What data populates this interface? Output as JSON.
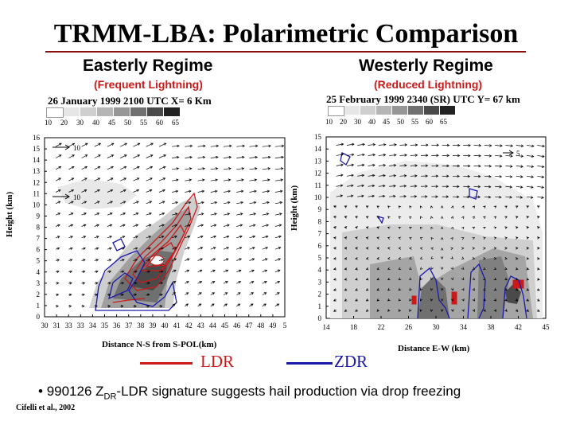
{
  "slide": {
    "title": "TRMM-LBA: Polarimetric Comparison",
    "bullet_marker": "•",
    "bullet_pre": "990126 Z",
    "bullet_sub": "DR",
    "bullet_post": "-LDR signature suggests hail production via drop freezing",
    "citation": "Cifelli et al., 2002"
  },
  "left_panel": {
    "regime": "Easterly Regime",
    "subtitle": "(Frequent Lightning)",
    "plot_title": "26 January 1999 2100 UTC X= 6 Km",
    "scale_labels": [
      "10",
      "20",
      "30",
      "40",
      "45",
      "50",
      "55",
      "60",
      "65"
    ],
    "ylabel": "Height (km)",
    "xlabel": "Distance N-S from S-POL(km)",
    "x_ticks": [
      "30",
      "31",
      "33",
      "33",
      "34",
      "35",
      "36",
      "37",
      "38",
      "39",
      "40",
      "41",
      "42",
      "43",
      "44",
      "45",
      "46",
      "47",
      "48",
      "49",
      "5"
    ],
    "y_ticks": [
      "0",
      "1",
      "2",
      "3",
      "4",
      "5",
      "6",
      "7",
      "8",
      "9",
      "10",
      "11",
      "12",
      "13",
      "14",
      "15",
      "16"
    ],
    "vector_scale": "10",
    "vector_scale_2": "10"
  },
  "right_panel": {
    "regime": "Westerly Regime",
    "subtitle": "(Reduced Lightning)",
    "plot_title": "25 February 1999 2340 (SR) UTC Y= 67 km",
    "scale_labels": [
      "10",
      "20",
      "30",
      "40",
      "45",
      "50",
      "55",
      "60",
      "65"
    ],
    "ylabel": "Height (km)",
    "xlabel": "Distance E-W (km)",
    "x_ticks": [
      "14",
      "18",
      "22",
      "26",
      "30",
      "34",
      "38",
      "42",
      "45"
    ],
    "y_ticks": [
      "0",
      "1",
      "2",
      "3",
      "4",
      "5",
      "6",
      "7",
      "8",
      "9",
      "10",
      "11",
      "12",
      "13",
      "14",
      "15"
    ],
    "vector_scale": "5"
  },
  "legend": {
    "ldr_label": "LDR",
    "zdr_label": "ZDR",
    "ldr_color": "#cc1a1a",
    "zdr_color": "#1a1aaa"
  },
  "colors": {
    "title_rule": "#8a1010",
    "subtitle": "#cc1a1a"
  }
}
